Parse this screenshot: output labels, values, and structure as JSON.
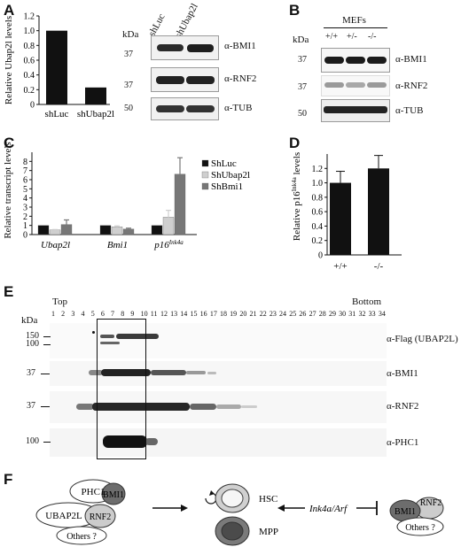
{
  "panel_labels": {
    "a": "A",
    "b": "B",
    "c": "C",
    "d": "D",
    "e": "E",
    "f": "F"
  },
  "chart_data": [
    {
      "type": "bar",
      "panel": "A",
      "categories": [
        "shLuc",
        "shUbap2l"
      ],
      "values": [
        1.0,
        0.23
      ],
      "ylabel": "Relative Ubap2l levels",
      "ylim": [
        0,
        1.2
      ],
      "yticks": [
        "0",
        "0.2",
        "0.4",
        "0.6",
        "0.8",
        "1.0",
        "1.2"
      ],
      "color": "#111111"
    },
    {
      "type": "bar",
      "panel": "C",
      "categories": [
        "Ubap2l",
        "Bmi1",
        "p16Ink4a"
      ],
      "series": [
        {
          "name": "ShLuc",
          "values": [
            1.0,
            1.0,
            1.0
          ],
          "errors": [
            0,
            0,
            0
          ],
          "color": "#111111"
        },
        {
          "name": "ShUbap2l",
          "values": [
            0.5,
            0.85,
            1.9
          ],
          "errors": [
            0.05,
            0.1,
            0.75
          ],
          "color": "#cfcfcf"
        },
        {
          "name": "ShBmi1",
          "values": [
            1.1,
            0.6,
            6.6
          ],
          "errors": [
            0.5,
            0.1,
            1.8
          ],
          "color": "#777777"
        }
      ],
      "ylabel": "Relative transcript levels",
      "ylim": [
        0,
        9
      ],
      "yticks": [
        "0",
        "1",
        "2",
        "3",
        "4",
        "5",
        "6",
        "7",
        "8"
      ],
      "legend": "right"
    },
    {
      "type": "bar",
      "panel": "D",
      "categories": [
        "+/+",
        "-/-"
      ],
      "values": [
        1.0,
        1.2
      ],
      "errors": [
        0.16,
        0.18
      ],
      "ylabel": "Relative p16Ink4a levels",
      "ylim": [
        0,
        1.4
      ],
      "yticks": [
        "0",
        "0.2",
        "0.4",
        "0.6",
        "0.8",
        "1.0",
        "1.2"
      ],
      "color": "#111111"
    }
  ],
  "panel_a_blot": {
    "kda": "kDa",
    "lanes": [
      "shLuc",
      "shUbap2l"
    ],
    "rows": [
      {
        "marker": "37",
        "antibody": "α-BMI1"
      },
      {
        "marker": "37",
        "antibody": "α-RNF2"
      },
      {
        "marker": "50",
        "antibody": "α-TUB"
      }
    ]
  },
  "panel_b_blot": {
    "kda": "kDa",
    "group": "MEFs",
    "lanes": [
      "+/+",
      "+/-",
      "-/-"
    ],
    "rows": [
      {
        "marker": "37",
        "antibody": "α-BMI1"
      },
      {
        "marker": "37",
        "antibody": "α-RNF2"
      },
      {
        "marker": "50",
        "antibody": "α-TUB"
      }
    ]
  },
  "panel_e": {
    "top": "Top",
    "bottom": "Bottom",
    "kda": "kDa",
    "fractions": [
      "1",
      "2",
      "3",
      "4",
      "5",
      "6",
      "7",
      "8",
      "9",
      "10",
      "11",
      "12",
      "13",
      "14",
      "15",
      "16",
      "17",
      "18",
      "19",
      "20",
      "21",
      "22",
      "23",
      "24",
      "25",
      "26",
      "27",
      "28",
      "29",
      "30",
      "31",
      "32",
      "33",
      "34"
    ],
    "rows": [
      {
        "markers": [
          "150",
          "100"
        ],
        "antibody": "α-Flag (UBAP2L)"
      },
      {
        "markers": [
          "37"
        ],
        "antibody": "α-BMI1"
      },
      {
        "markers": [
          "37"
        ],
        "antibody": "α-RNF2"
      },
      {
        "markers": [
          "100"
        ],
        "antibody": "α-PHC1"
      }
    ]
  },
  "panel_f": {
    "complex": [
      "PHC1",
      "BMI1",
      "UBAP2L",
      "RNF2",
      "Others ?"
    ],
    "hsc": "HSC",
    "mpp": "MPP",
    "gene": "Ink4a/Arf",
    "right_complex": [
      "BMI1",
      "RNF2",
      "Others ?"
    ]
  }
}
